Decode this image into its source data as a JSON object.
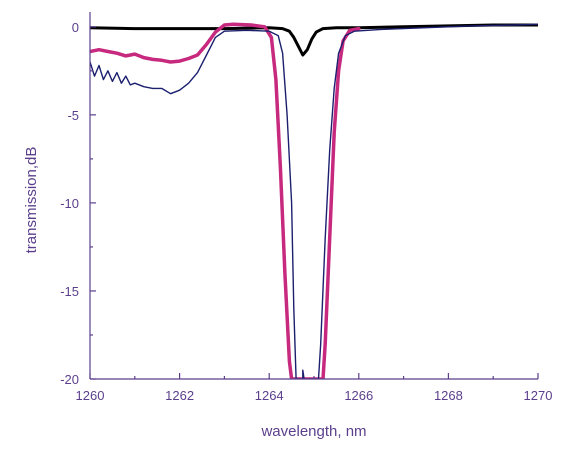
{
  "chart_data": {
    "type": "line",
    "xlabel": "wavelength, nm",
    "ylabel": "transmission,dB",
    "xlim": [
      1260,
      1270
    ],
    "ylim": [
      -20,
      0.5
    ],
    "x_ticks": [
      1260,
      1262,
      1264,
      1266,
      1268,
      1270
    ],
    "y_ticks": [
      0,
      -5,
      -10,
      -15,
      -20
    ],
    "grid": false,
    "legend": "none",
    "series": [
      {
        "color": "#000000",
        "width": 3,
        "points": [
          [
            1260.0,
            -0.05
          ],
          [
            1261.0,
            -0.1
          ],
          [
            1262.0,
            -0.1
          ],
          [
            1263.0,
            -0.1
          ],
          [
            1264.0,
            -0.05
          ],
          [
            1264.3,
            -0.1
          ],
          [
            1264.45,
            -0.25
          ],
          [
            1264.55,
            -0.6
          ],
          [
            1264.65,
            -1.1
          ],
          [
            1264.75,
            -1.6
          ],
          [
            1264.85,
            -1.3
          ],
          [
            1264.95,
            -0.7
          ],
          [
            1265.05,
            -0.3
          ],
          [
            1265.2,
            -0.1
          ],
          [
            1265.5,
            -0.05
          ],
          [
            1266.0,
            -0.05
          ],
          [
            1267.0,
            0.0
          ],
          [
            1268.0,
            0.05
          ],
          [
            1269.0,
            0.1
          ],
          [
            1270.0,
            0.1
          ]
        ]
      },
      {
        "color": "#c7297f",
        "width": 3.5,
        "points": [
          [
            1260.0,
            -1.4
          ],
          [
            1260.2,
            -1.3
          ],
          [
            1260.4,
            -1.4
          ],
          [
            1260.6,
            -1.5
          ],
          [
            1260.8,
            -1.65
          ],
          [
            1261.0,
            -1.55
          ],
          [
            1261.2,
            -1.75
          ],
          [
            1261.4,
            -1.85
          ],
          [
            1261.6,
            -1.9
          ],
          [
            1261.8,
            -2.0
          ],
          [
            1262.0,
            -1.95
          ],
          [
            1262.2,
            -1.8
          ],
          [
            1262.4,
            -1.6
          ],
          [
            1262.6,
            -1.0
          ],
          [
            1262.8,
            -0.3
          ],
          [
            1263.0,
            0.1
          ],
          [
            1263.2,
            0.15
          ],
          [
            1263.6,
            0.1
          ],
          [
            1263.9,
            0.0
          ],
          [
            1264.05,
            -0.6
          ],
          [
            1264.15,
            -3.0
          ],
          [
            1264.25,
            -8.0
          ],
          [
            1264.35,
            -14.0
          ],
          [
            1264.45,
            -19.0
          ],
          [
            1264.5,
            -20.0
          ],
          [
            1265.2,
            -20.0
          ],
          [
            1265.25,
            -18.0
          ],
          [
            1265.35,
            -12.0
          ],
          [
            1265.45,
            -6.0
          ],
          [
            1265.55,
            -2.5
          ],
          [
            1265.65,
            -0.8
          ],
          [
            1265.8,
            -0.2
          ],
          [
            1266.0,
            -0.1
          ]
        ]
      },
      {
        "color": "#1b1f6e",
        "width": 1.4,
        "points": [
          [
            1260.0,
            -2.0
          ],
          [
            1260.1,
            -2.8
          ],
          [
            1260.2,
            -2.2
          ],
          [
            1260.3,
            -3.0
          ],
          [
            1260.4,
            -2.5
          ],
          [
            1260.5,
            -3.1
          ],
          [
            1260.6,
            -2.6
          ],
          [
            1260.7,
            -3.2
          ],
          [
            1260.8,
            -2.8
          ],
          [
            1260.9,
            -3.3
          ],
          [
            1261.0,
            -3.2
          ],
          [
            1261.2,
            -3.4
          ],
          [
            1261.4,
            -3.5
          ],
          [
            1261.6,
            -3.5
          ],
          [
            1261.8,
            -3.8
          ],
          [
            1262.0,
            -3.6
          ],
          [
            1262.2,
            -3.2
          ],
          [
            1262.4,
            -2.6
          ],
          [
            1262.6,
            -1.6
          ],
          [
            1262.8,
            -0.6
          ],
          [
            1263.0,
            -0.25
          ],
          [
            1263.5,
            -0.2
          ],
          [
            1264.0,
            -0.25
          ],
          [
            1264.2,
            -0.5
          ],
          [
            1264.3,
            -1.5
          ],
          [
            1264.4,
            -5.0
          ],
          [
            1264.5,
            -10.0
          ],
          [
            1264.55,
            -16.0
          ],
          [
            1264.6,
            -20.0
          ],
          [
            1264.75,
            -20.0
          ],
          [
            1264.75,
            -19.5
          ],
          [
            1264.78,
            -20.0
          ],
          [
            1265.1,
            -20.0
          ],
          [
            1265.15,
            -18.0
          ],
          [
            1265.25,
            -12.0
          ],
          [
            1265.35,
            -7.0
          ],
          [
            1265.45,
            -3.5
          ],
          [
            1265.55,
            -1.5
          ],
          [
            1265.7,
            -0.5
          ],
          [
            1265.9,
            -0.25
          ],
          [
            1266.5,
            -0.15
          ],
          [
            1267.5,
            -0.05
          ],
          [
            1268.5,
            0.05
          ],
          [
            1269.5,
            0.1
          ],
          [
            1270.0,
            0.15
          ]
        ]
      }
    ]
  }
}
